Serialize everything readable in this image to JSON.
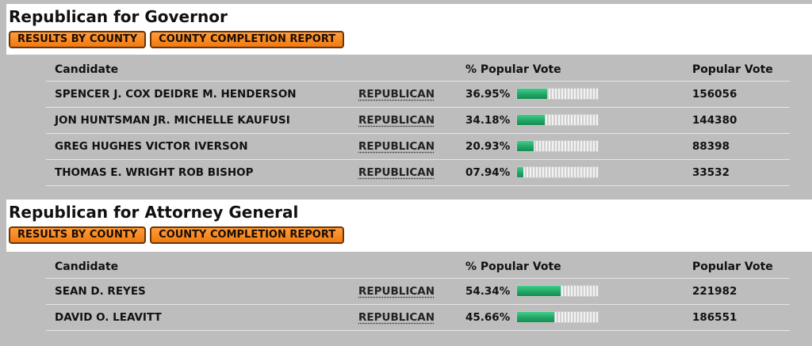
{
  "races": [
    {
      "title": "Republican for Governor",
      "buttons": {
        "results_by_county": "RESULTS BY COUNTY",
        "county_completion": "COUNTY COMPLETION REPORT"
      },
      "columns": {
        "candidate": "Candidate",
        "party": "",
        "pct": "% Popular Vote",
        "votes": "Popular Vote"
      },
      "rows": [
        {
          "candidate": "SPENCER J. COX DEIDRE M. HENDERSON",
          "party": "REPUBLICAN",
          "pct_label": "36.95%",
          "pct": 36.95,
          "votes": "156056"
        },
        {
          "candidate": "JON HUNTSMAN JR. MICHELLE KAUFUSI",
          "party": "REPUBLICAN",
          "pct_label": "34.18%",
          "pct": 34.18,
          "votes": "144380"
        },
        {
          "candidate": "GREG HUGHES VICTOR IVERSON",
          "party": "REPUBLICAN",
          "pct_label": "20.93%",
          "pct": 20.93,
          "votes": "88398"
        },
        {
          "candidate": "THOMAS E. WRIGHT ROB BISHOP",
          "party": "REPUBLICAN",
          "pct_label": "07.94%",
          "pct": 7.94,
          "votes": "33532"
        }
      ]
    },
    {
      "title": "Republican for Attorney General",
      "buttons": {
        "results_by_county": "RESULTS BY COUNTY",
        "county_completion": "COUNTY COMPLETION REPORT"
      },
      "columns": {
        "candidate": "Candidate",
        "party": "",
        "pct": "% Popular Vote",
        "votes": "Popular Vote"
      },
      "rows": [
        {
          "candidate": "SEAN D. REYES",
          "party": "REPUBLICAN",
          "pct_label": "54.34%",
          "pct": 54.34,
          "votes": "221982"
        },
        {
          "candidate": "DAVID O. LEAVITT",
          "party": "REPUBLICAN",
          "pct_label": "45.66%",
          "pct": 45.66,
          "votes": "186551"
        }
      ]
    }
  ],
  "colors": {
    "page_background": "#bdbdbd",
    "header_background": "#ffffff",
    "button_orange": "#f5831f",
    "bar_fill_green": "#20a262"
  }
}
